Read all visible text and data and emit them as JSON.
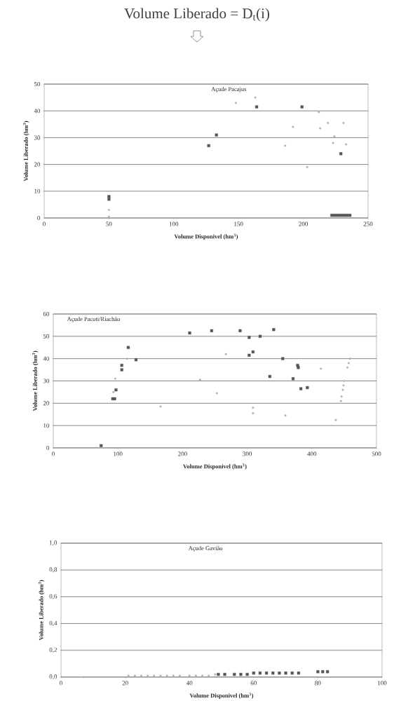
{
  "chart_data": [
    {
      "type": "scatter",
      "title": "Volume Liberado = D$_{t}$(i)",
      "annotations": [
        "Açude Pacajus"
      ],
      "xlabel": "Volume Disponivel (hm$^{3}$)",
      "ylabel": "Volume Liberado (hm$^{3}$)",
      "xlim": [
        0,
        250
      ],
      "ylim": [
        0,
        50
      ],
      "xticks": [
        0,
        50,
        100,
        150,
        200,
        250
      ],
      "yticks": [
        0,
        10,
        20,
        30,
        40,
        50
      ],
      "grid": "y",
      "series": [
        {
          "color": "#555555",
          "marker": "square",
          "x": [
            50,
            50,
            127,
            133,
            164,
            199,
            229,
            222,
            224,
            226,
            228,
            230,
            232,
            234,
            236
          ],
          "values": [
            8,
            7,
            27,
            31,
            41.5,
            41.5,
            24,
            1,
            1,
            1,
            1,
            1,
            1,
            1,
            1
          ]
        },
        {
          "color": "#b0b0b0",
          "marker": "circle",
          "x": [
            50,
            50,
            148,
            163,
            212,
            192,
            186,
            203,
            213,
            219,
            231,
            224,
            223,
            233
          ],
          "values": [
            3,
            0.5,
            43,
            45,
            39.5,
            34,
            27,
            19,
            33.5,
            35.5,
            35.5,
            30.5,
            28,
            27.5
          ]
        }
      ]
    },
    {
      "type": "scatter",
      "annotations": [
        "Açude Pacoti/Riachão"
      ],
      "xlabel": "Volume Disponivel (hm$^{3}$)",
      "ylabel": "Volume Liberado (hm$^{3}$)",
      "xlim": [
        0,
        500
      ],
      "ylim": [
        0,
        60
      ],
      "xticks": [
        0,
        100,
        200,
        300,
        400,
        500
      ],
      "yticks": [
        0,
        10,
        20,
        30,
        40,
        50,
        60
      ],
      "grid": "y",
      "series": [
        {
          "color": "#555555",
          "marker": "square",
          "x": [
            74,
            92,
            95,
            97,
            106,
            106,
            116,
            128,
            211,
            245,
            289,
            303,
            320,
            341,
            303,
            309,
            355,
            378,
            379,
            335,
            371,
            383,
            393
          ],
          "values": [
            1,
            22,
            22,
            26,
            37,
            35,
            45,
            39.5,
            51.5,
            52.5,
            52.5,
            49.5,
            50,
            53,
            41.5,
            43,
            40,
            37,
            36,
            32,
            31,
            26.5,
            27
          ]
        },
        {
          "color": "#b0b0b0",
          "marker": "circle",
          "x": [
            93,
            96,
            114,
            166,
            227,
            267,
            253,
            309,
            309,
            359,
            414,
            437,
            445,
            446,
            448,
            449,
            450,
            455,
            457,
            459
          ],
          "values": [
            25,
            31,
            40,
            18.5,
            30.5,
            42,
            24.5,
            18,
            15.5,
            14.5,
            35.5,
            12.5,
            21,
            23,
            26,
            28,
            30,
            36,
            38,
            40
          ]
        }
      ]
    },
    {
      "type": "scatter",
      "annotations": [
        "Açude Gavião"
      ],
      "xlabel": "Volume Disponivel (hm$^{3}$)",
      "ylabel": "Volume Liberado (hm$^{3}$)",
      "xlim": [
        0,
        100
      ],
      "ylim": [
        0,
        1.0
      ],
      "xticks": [
        0,
        20,
        40,
        60,
        80,
        100
      ],
      "yticks": [
        {
          "value": 0,
          "label": "0,0"
        },
        {
          "value": 0.2,
          "label": "0,2"
        },
        {
          "value": 0.4,
          "label": "0,4"
        },
        {
          "value": 0.6,
          "label": "0,6"
        },
        {
          "value": 0.8,
          "label": "0,8"
        },
        {
          "value": 1.0,
          "label": "1,0"
        }
      ],
      "grid": "y",
      "series": [
        {
          "color": "#555555",
          "marker": "square",
          "x": [
            49,
            51,
            54,
            56,
            58,
            60,
            62,
            64,
            66,
            68,
            70,
            72,
            74,
            80,
            81.5,
            83
          ],
          "values": [
            0.02,
            0.02,
            0.02,
            0.02,
            0.02,
            0.03,
            0.03,
            0.03,
            0.03,
            0.03,
            0.03,
            0.03,
            0.03,
            0.04,
            0.04,
            0.04
          ]
        },
        {
          "color": "#b0b0b0",
          "marker": "circle",
          "x": [
            7,
            21,
            23,
            25,
            27,
            29,
            31,
            33,
            35,
            37,
            40,
            42,
            44,
            46,
            48
          ],
          "values": [
            0,
            0.01,
            0.01,
            0.01,
            0.01,
            0.01,
            0.01,
            0.01,
            0.01,
            0.01,
            0.01,
            0.01,
            0.01,
            0.01,
            0.02
          ]
        }
      ]
    }
  ]
}
